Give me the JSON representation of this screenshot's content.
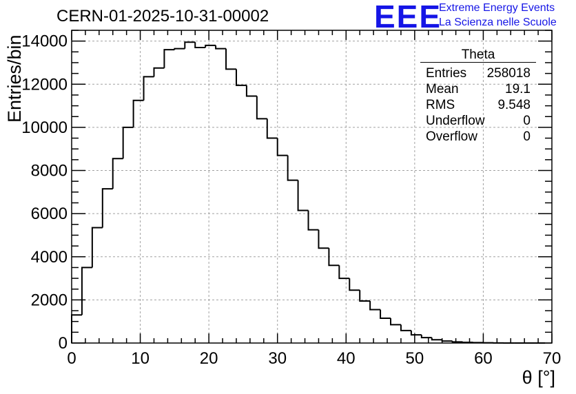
{
  "title": "CERN-01-2025-10-31-00002",
  "logo": {
    "mark": "EEE",
    "line1": "Extreme Energy Events",
    "line2": "La Scienza nelle Scuole",
    "color": "#1515e6"
  },
  "stats": {
    "title": "Theta",
    "rows": [
      {
        "label": "Entries",
        "value": "258018"
      },
      {
        "label": "Mean",
        "value": "19.1"
      },
      {
        "label": "RMS",
        "value": "9.548"
      },
      {
        "label": "Underflow",
        "value": "0"
      },
      {
        "label": "Overflow",
        "value": "0"
      }
    ]
  },
  "chart_data": {
    "type": "bar",
    "subtype": "histogram",
    "title": "CERN-01-2025-10-31-00002",
    "xlabel": "θ [°]",
    "ylabel": "Entries/bin",
    "xlim": [
      0,
      70
    ],
    "ylim": [
      0,
      14500
    ],
    "bin_width": 1.5,
    "x_start": 0,
    "values": [
      1300,
      3500,
      5350,
      7150,
      8550,
      10000,
      11250,
      12350,
      12750,
      13600,
      13650,
      13950,
      13700,
      13800,
      13650,
      12700,
      11950,
      11450,
      10400,
      9500,
      8700,
      7550,
      6150,
      5250,
      4400,
      3600,
      3000,
      2450,
      1950,
      1550,
      1150,
      850,
      580,
      380,
      250,
      150,
      90,
      50,
      30,
      20,
      10,
      5,
      0,
      0,
      0,
      0
    ],
    "x_ticks": [
      0,
      10,
      20,
      30,
      40,
      50,
      60,
      70
    ],
    "y_ticks": [
      0,
      2000,
      4000,
      6000,
      8000,
      10000,
      12000,
      14000
    ],
    "grid": true,
    "legend": "stats-box top-right",
    "line_color": "#000000",
    "grid_color": "#a0a0a0"
  }
}
